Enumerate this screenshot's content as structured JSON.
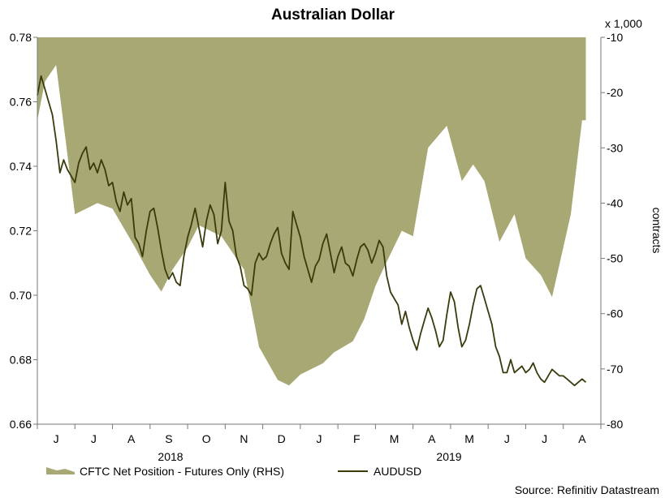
{
  "chart_data": {
    "type": "area+line",
    "title": "Australian Dollar",
    "source": "Source: Refinitiv Datastream",
    "left_axis": {
      "ylim": [
        0.66,
        0.78
      ],
      "ticks": [
        "0.66",
        "0.68",
        "0.70",
        "0.72",
        "0.74",
        "0.76",
        "0.78"
      ]
    },
    "right_axis": {
      "ylim": [
        -80,
        -10
      ],
      "ticks": [
        "-80",
        "-70",
        "-60",
        "-50",
        "-40",
        "-30",
        "-20",
        "-10"
      ],
      "unit": "x 1,000",
      "label": "contracts"
    },
    "x_months": [
      "J",
      "J",
      "A",
      "S",
      "O",
      "N",
      "D",
      "J",
      "F",
      "M",
      "A",
      "M",
      "J",
      "J",
      "A"
    ],
    "year_labels": [
      "2018",
      "2019"
    ],
    "legend": [
      {
        "label": "CFTC Net Position - Futures Only (RHS)",
        "kind": "area"
      },
      {
        "label": "AUDUSD",
        "kind": "line"
      }
    ],
    "colors": {
      "area": "#a8a874",
      "line": "#3a3a0c",
      "axis": "#777777"
    },
    "series": [
      {
        "name": "CFTC Net Position - Futures Only (RHS)",
        "axis": "right",
        "x": [
          0,
          0.2,
          0.5,
          0.5,
          1.0,
          1.0,
          1.6,
          1.6,
          2.0,
          2.0,
          2.6,
          2.6,
          3.0,
          3.0,
          3.3,
          3.3,
          3.6,
          3.6,
          4.0,
          4.0,
          4.3,
          4.3,
          4.9,
          4.9,
          5.5,
          5.5,
          5.9,
          5.9,
          6.4,
          6.4,
          6.7,
          6.7,
          7.0,
          7.0,
          7.3,
          7.3,
          7.6,
          7.6,
          7.9,
          7.9,
          8.4,
          8.4,
          8.7,
          8.7,
          9.0,
          9.0,
          9.2,
          9.2,
          9.7,
          9.7,
          10.0,
          10.0,
          10.4,
          10.4,
          10.9,
          10.9,
          11.3,
          11.3,
          11.6,
          11.6,
          11.9,
          11.9,
          12.3,
          12.3,
          12.7,
          12.7,
          13.0,
          13.0,
          13.4,
          13.4,
          13.7,
          13.7,
          14.2,
          14.2,
          14.5,
          14.6
        ],
        "values": [
          -25,
          -18,
          -15,
          -15,
          -42,
          -42,
          -40,
          -40,
          -41,
          -41,
          -48,
          -48,
          -53,
          -53,
          -56,
          -56,
          -52,
          -52,
          -48,
          -48,
          -44,
          -44,
          -46,
          -46,
          -52,
          -52,
          -66,
          -66,
          -72,
          -72,
          -73,
          -73,
          -71,
          -71,
          -70,
          -70,
          -69,
          -69,
          -67,
          -67,
          -65,
          -65,
          -61,
          -61,
          -55,
          -55,
          -52,
          -52,
          -45,
          -45,
          -46,
          -46,
          -30,
          -30,
          -26,
          -26,
          -36,
          -36,
          -33,
          -33,
          -36,
          -36,
          -47,
          -47,
          -42,
          -42,
          -50,
          -50,
          -53,
          -53,
          -57,
          -57,
          -42,
          -42,
          -25,
          -25
        ]
      },
      {
        "name": "AUDUSD",
        "axis": "left",
        "x": [
          0,
          0.1,
          0.2,
          0.3,
          0.4,
          0.5,
          0.6,
          0.7,
          0.8,
          0.9,
          1.0,
          1.1,
          1.2,
          1.3,
          1.4,
          1.5,
          1.6,
          1.7,
          1.8,
          1.9,
          2.0,
          2.1,
          2.2,
          2.3,
          2.4,
          2.5,
          2.6,
          2.7,
          2.8,
          2.9,
          3.0,
          3.1,
          3.2,
          3.3,
          3.4,
          3.5,
          3.6,
          3.7,
          3.8,
          3.9,
          4.0,
          4.1,
          4.2,
          4.3,
          4.4,
          4.5,
          4.6,
          4.7,
          4.8,
          4.9,
          5.0,
          5.1,
          5.2,
          5.3,
          5.4,
          5.5,
          5.6,
          5.7,
          5.8,
          5.9,
          6.0,
          6.1,
          6.2,
          6.3,
          6.4,
          6.5,
          6.6,
          6.7,
          6.8,
          6.9,
          7.0,
          7.1,
          7.2,
          7.3,
          7.4,
          7.5,
          7.6,
          7.7,
          7.8,
          7.9,
          8.0,
          8.1,
          8.2,
          8.3,
          8.4,
          8.5,
          8.6,
          8.7,
          8.8,
          8.9,
          9.0,
          9.1,
          9.2,
          9.3,
          9.4,
          9.5,
          9.6,
          9.7,
          9.8,
          9.9,
          10.0,
          10.1,
          10.2,
          10.3,
          10.4,
          10.5,
          10.6,
          10.7,
          10.8,
          10.9,
          11.0,
          11.1,
          11.2,
          11.3,
          11.4,
          11.5,
          11.6,
          11.7,
          11.8,
          11.9,
          12.0,
          12.1,
          12.2,
          12.3,
          12.4,
          12.5,
          12.6,
          12.7,
          12.8,
          12.9,
          13.0,
          13.1,
          13.2,
          13.3,
          13.4,
          13.5,
          13.6,
          13.7,
          13.8,
          13.9,
          14.0,
          14.1,
          14.2,
          14.3,
          14.4,
          14.5,
          14.6
        ],
        "values": [
          0.762,
          0.768,
          0.764,
          0.76,
          0.756,
          0.748,
          0.738,
          0.742,
          0.739,
          0.737,
          0.735,
          0.741,
          0.744,
          0.746,
          0.739,
          0.741,
          0.738,
          0.742,
          0.739,
          0.734,
          0.735,
          0.729,
          0.726,
          0.732,
          0.728,
          0.73,
          0.718,
          0.716,
          0.712,
          0.72,
          0.726,
          0.727,
          0.721,
          0.714,
          0.708,
          0.705,
          0.707,
          0.704,
          0.703,
          0.712,
          0.718,
          0.722,
          0.727,
          0.721,
          0.715,
          0.723,
          0.728,
          0.725,
          0.716,
          0.72,
          0.735,
          0.723,
          0.72,
          0.712,
          0.709,
          0.703,
          0.702,
          0.7,
          0.71,
          0.713,
          0.711,
          0.712,
          0.716,
          0.719,
          0.721,
          0.713,
          0.71,
          0.708,
          0.726,
          0.722,
          0.718,
          0.712,
          0.708,
          0.704,
          0.709,
          0.711,
          0.716,
          0.719,
          0.713,
          0.707,
          0.712,
          0.715,
          0.71,
          0.709,
          0.706,
          0.711,
          0.715,
          0.716,
          0.714,
          0.71,
          0.713,
          0.717,
          0.715,
          0.706,
          0.701,
          0.699,
          0.697,
          0.691,
          0.695,
          0.69,
          0.686,
          0.683,
          0.688,
          0.692,
          0.696,
          0.693,
          0.689,
          0.684,
          0.686,
          0.694,
          0.701,
          0.698,
          0.69,
          0.684,
          0.686,
          0.691,
          0.697,
          0.702,
          0.703,
          0.699,
          0.695,
          0.691,
          0.684,
          0.681,
          0.676,
          0.676,
          0.68,
          0.676,
          0.677,
          0.678,
          0.676,
          0.677,
          0.679,
          0.676,
          0.674,
          0.673,
          0.675,
          0.677,
          0.676,
          0.675,
          0.675,
          0.674,
          0.673,
          0.672,
          0.673,
          0.674,
          0.673
        ]
      }
    ]
  }
}
